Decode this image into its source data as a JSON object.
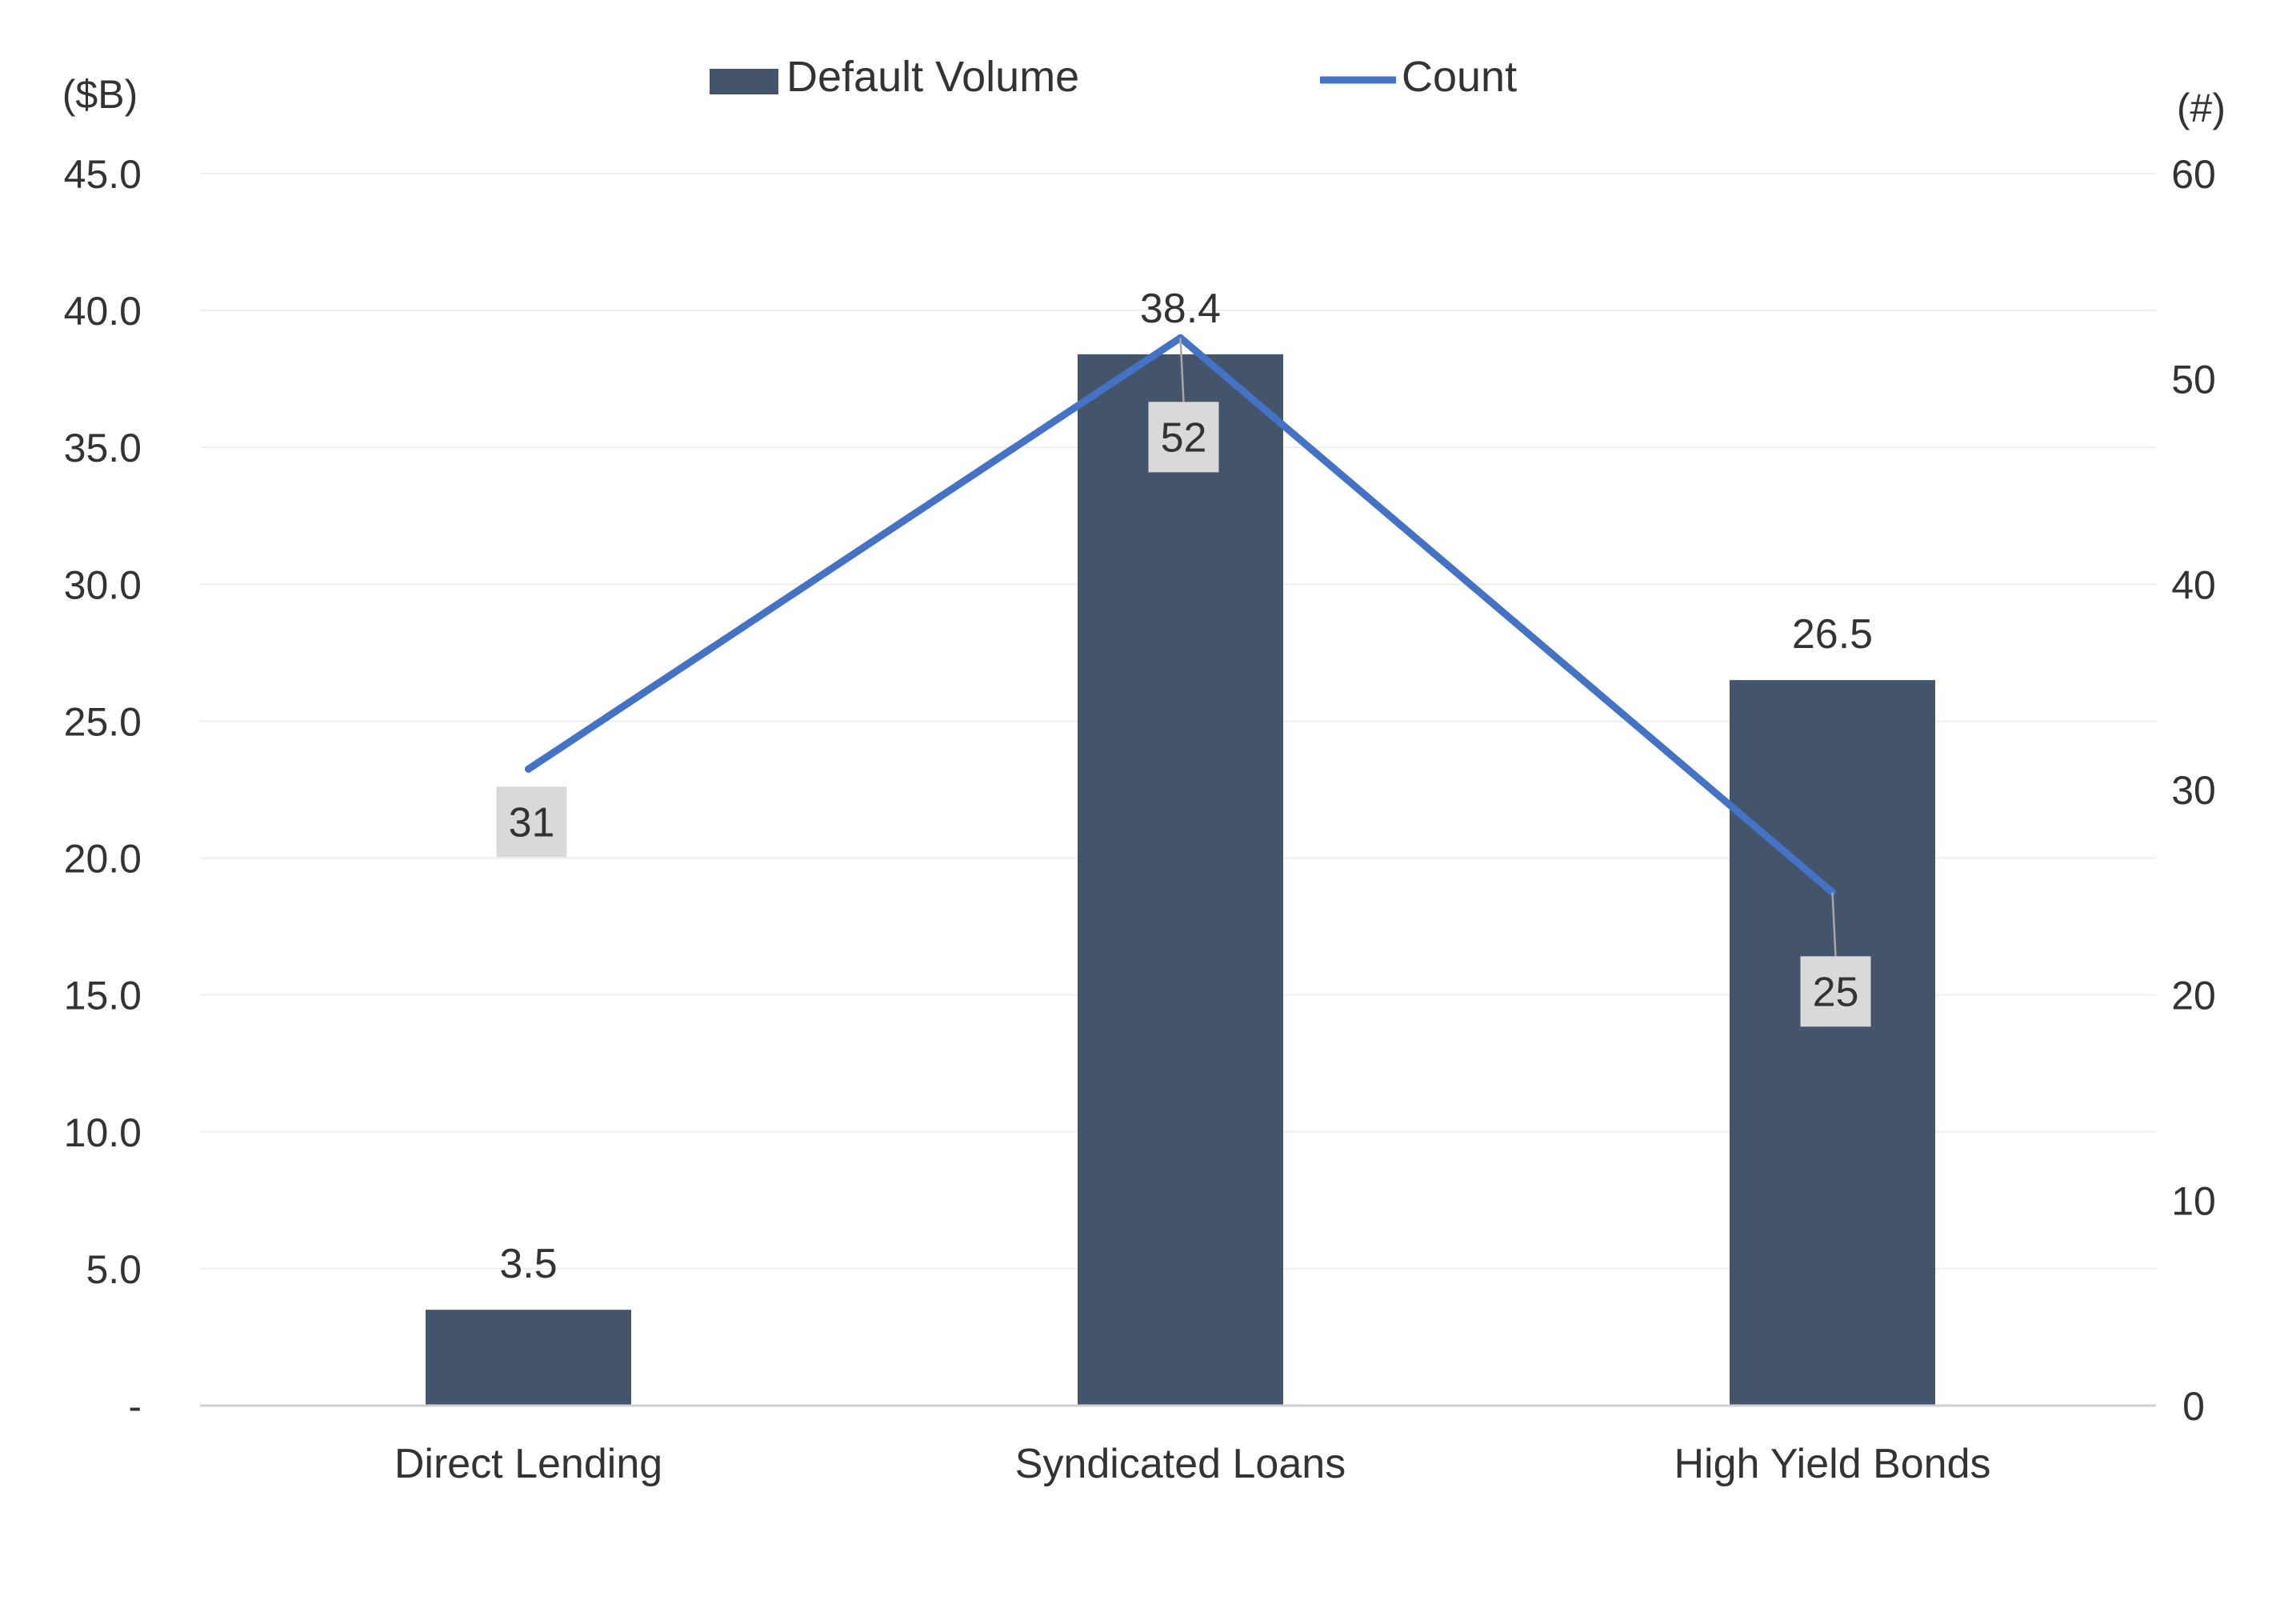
{
  "chart_data": {
    "type": "bar",
    "categories": [
      "Direct Lending",
      "Syndicated Loans",
      "High Yield Bonds"
    ],
    "series": [
      {
        "name": "Default Volume",
        "type": "bar",
        "axis": "left",
        "values": [
          3.5,
          38.4,
          26.5
        ],
        "labels": [
          "3.5",
          "38.4",
          "26.5"
        ],
        "color": "#44546a"
      },
      {
        "name": "Count",
        "type": "line",
        "axis": "right",
        "values": [
          31,
          52,
          25
        ],
        "labels": [
          "31",
          "52",
          "25"
        ],
        "color": "#4472c4"
      }
    ],
    "left_axis": {
      "unit": "($B)",
      "ylim": [
        0,
        45
      ],
      "ticks": [
        0,
        5,
        10,
        15,
        20,
        25,
        30,
        35,
        40,
        45
      ],
      "tick_labels": [
        "-",
        "5.0",
        "10.0",
        "15.0",
        "20.0",
        "25.0",
        "30.0",
        "35.0",
        "40.0",
        "45.0"
      ]
    },
    "right_axis": {
      "unit": "(#)",
      "ylim": [
        0,
        60
      ],
      "ticks": [
        0,
        10,
        20,
        30,
        40,
        50,
        60
      ],
      "tick_labels": [
        "0",
        "10",
        "20",
        "30",
        "40",
        "50",
        "60"
      ]
    },
    "grid": true,
    "legend_position": "top-center",
    "label_box_color": "#d9d9d9",
    "gridline_color": "#eeeeee",
    "axis_color": "#d0d0d0"
  }
}
